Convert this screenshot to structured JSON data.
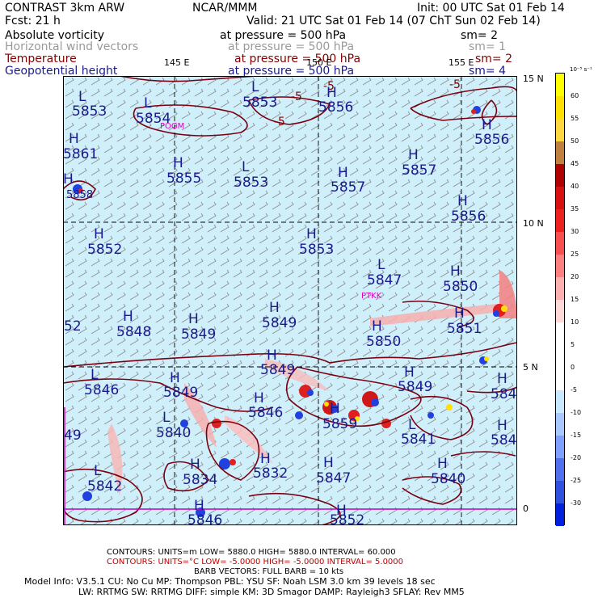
{
  "header": {
    "title_left": "CONTRAST   3km ARW",
    "title_center": "NCAR/MMM",
    "init": "Init: 00 UTC Sat 01 Feb 14",
    "fcst": "Fcst:    21 h",
    "valid": "Valid: 21 UTC Sat 01 Feb 14 (07 ChT Sun 02 Feb 14)",
    "fields": [
      {
        "name": "Absolute vorticity",
        "pressure": "at pressure =  500 hPa",
        "sm": "sm= 2",
        "color": "#000000"
      },
      {
        "name": "Horizontal wind vectors",
        "pressure": "at pressure =  500 hPa",
        "sm": "sm= 1",
        "color": "#9a9a9a"
      },
      {
        "name": "Temperature",
        "pressure": "at pressure =  500 hPa",
        "sm": "sm= 2",
        "color": "#800000"
      },
      {
        "name": "Geopotential height",
        "pressure": "at pressure =  500 hPa",
        "sm": "sm= 4",
        "color": "#1a1a8c"
      }
    ]
  },
  "map": {
    "lon_labels": [
      "145 E",
      "150 E",
      "155 E"
    ],
    "lat_labels": [
      "15 N",
      "10 N",
      "5 N",
      "0"
    ],
    "stations": [
      "POGM",
      "PTKK"
    ],
    "height_labels": [
      {
        "hl": "L",
        "val": "5853"
      },
      {
        "hl": "L",
        "val": "5854"
      },
      {
        "hl": "L",
        "val": "5853"
      },
      {
        "hl": "H",
        "val": "5856"
      },
      {
        "hl": "H",
        "val": "5856"
      },
      {
        "hl": "H",
        "val": "5861"
      },
      {
        "hl": "H",
        "val": "5855"
      },
      {
        "hl": "L",
        "val": "5853"
      },
      {
        "hl": "H",
        "val": "5857"
      },
      {
        "hl": "H",
        "val": "5857"
      },
      {
        "hl": "H",
        "val": "5858"
      },
      {
        "hl": "H",
        "val": "5856"
      },
      {
        "hl": "H",
        "val": "5852"
      },
      {
        "hl": "H",
        "val": "5853"
      },
      {
        "hl": "L",
        "val": "5847"
      },
      {
        "hl": "H",
        "val": "5850"
      },
      {
        "hl": "H",
        "val": "5848"
      },
      {
        "hl": "H",
        "val": "5849"
      },
      {
        "hl": "H",
        "val": "5849"
      },
      {
        "hl": "H",
        "val": "5850"
      },
      {
        "hl": "H",
        "val": "5851"
      },
      {
        "hl": "H",
        "val": "5849"
      },
      {
        "hl": "L",
        "val": "5846"
      },
      {
        "hl": "H",
        "val": "5849"
      },
      {
        "hl": "H",
        "val": "5846"
      },
      {
        "hl": "H",
        "val": "5849"
      },
      {
        "hl": "L",
        "val": "5840"
      },
      {
        "hl": "H",
        "val": "5859"
      },
      {
        "hl": "L",
        "val": "5841"
      },
      {
        "hl": "L",
        "val": "5842"
      },
      {
        "hl": "H",
        "val": "5834"
      },
      {
        "hl": "H",
        "val": "5832"
      },
      {
        "hl": "H",
        "val": "5847"
      },
      {
        "hl": "H",
        "val": "5840"
      },
      {
        "hl": "H",
        "val": "5846"
      },
      {
        "hl": "H",
        "val": "5852"
      },
      {
        "hl": "H",
        "val": "584"
      },
      {
        "hl": "H",
        "val": "584"
      },
      {
        "hl": "",
        "val": "52"
      },
      {
        "hl": "",
        "val": "49"
      }
    ],
    "temp_contour_labels": [
      "-5",
      "-5",
      "-5",
      "-5"
    ]
  },
  "colorbar": {
    "unit": "10⁻⁵ s⁻¹",
    "ticks": [
      "60",
      "55",
      "50",
      "45",
      "40",
      "35",
      "30",
      "25",
      "20",
      "15",
      "10",
      "5",
      "0",
      "-5",
      "-10",
      "-15",
      "-20",
      "-25",
      "-30"
    ],
    "colors": [
      "#ffff00",
      "#ffe000",
      "#ffd740",
      "#c08040",
      "#b00000",
      "#d81010",
      "#ee2020",
      "#f85050",
      "#fc8080",
      "#fcb0b0",
      "#ffd8d8",
      "#ffffff",
      "#ffffff",
      "#ffffff",
      "#c8e8ff",
      "#a8c8ff",
      "#80a0ff",
      "#5070f0",
      "#3050e0",
      "#0020e0"
    ]
  },
  "footer": {
    "contours1": "CONTOURS:  UNITS=m  LOW=   5880.0         HIGH=   5880.0        INTERVAL=   60.000",
    "contours2": "CONTOURS:  UNITS=°C  LOW= -5.0000          HIGH= -5.0000           INTERVAL=   5.0000",
    "barbs": "BARB VECTORS:  FULL BARB = 10 kts",
    "model1": "Model Info: V3.5.1     CU: No Cu      MP: Thompson      PBL: YSU       SF: Noah LSM     3.0 km   39 levels    18 sec",
    "model2": "LW: RRTMG     SW: RRTMG   DIFF: simple KM: 3D Smagor DAMP: Rayleigh3  SFLAY: Rev MM5"
  }
}
